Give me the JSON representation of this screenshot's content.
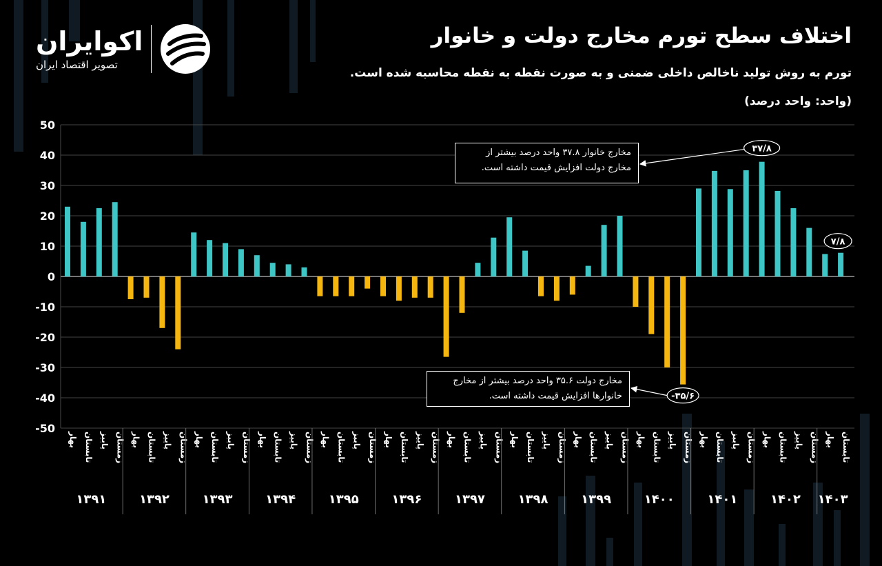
{
  "header": {
    "title": "اختلاف سطح تورم مخارج دولت و خانوار",
    "subtitle": "تورم به روش تولید ناخالص داخلی ضمنی و به صورت نقطه به نقطه محاسبه شده است.",
    "unit": "(واحد: واحد درصد)"
  },
  "logo": {
    "name": "اکوایران",
    "tagline": "تصویر اقتصاد ایران"
  },
  "annotations": {
    "household": "مخارج خانوار ۳۷.۸ واحد درصد بیشتر از مخارج دولت افزایش قیمت داشته است.",
    "government": "مخارج دولت ۳۵.۶ واحد درصد بیشتر از مخارج خانوارها افزایش قیمت داشته است."
  },
  "colors": {
    "positive": "#3ec6c6",
    "negative": "#f5b60f",
    "grid": "#5a5a5a",
    "text": "#ffffff",
    "background": "#000000"
  },
  "chart_data": {
    "type": "bar",
    "title": "اختلاف سطح تورم مخارج دولت و خانوار",
    "ylabel": "واحد درصد",
    "ylim": [
      -50,
      50
    ],
    "yticks": [
      {
        "value": 50,
        "label": "50"
      },
      {
        "value": 40,
        "label": "40"
      },
      {
        "value": 30,
        "label": "30"
      },
      {
        "value": 20,
        "label": "20"
      },
      {
        "value": 10,
        "label": "10"
      },
      {
        "value": 0,
        "label": "0"
      },
      {
        "value": -10,
        "label": "-10"
      },
      {
        "value": -20,
        "label": "-20"
      },
      {
        "value": -30,
        "label": "-30"
      },
      {
        "value": -40,
        "label": "-40"
      },
      {
        "value": -50,
        "label": "-50"
      }
    ],
    "seasons": [
      "بهار",
      "تابستان",
      "پاییز",
      "زمستان"
    ],
    "years": [
      "۱۳۹۱",
      "۱۳۹۲",
      "۱۳۹۳",
      "۱۳۹۴",
      "۱۳۹۵",
      "۱۳۹۶",
      "۱۳۹۷",
      "۱۳۹۸",
      "۱۳۹۹",
      "۱۴۰۰",
      "۱۴۰۱",
      "۱۴۰۲",
      "۱۴۰۳"
    ],
    "values": [
      23,
      18,
      22.5,
      24.5,
      -7.5,
      -7,
      -17,
      -24,
      14.5,
      12,
      11,
      9,
      7,
      4.5,
      4,
      3,
      -6.5,
      -6.5,
      -6.5,
      -4,
      -6.5,
      -8,
      -7,
      -7,
      -26.5,
      -12,
      4.5,
      12.8,
      19.5,
      8.5,
      -6.5,
      -8,
      -6,
      3.5,
      17,
      20,
      -10,
      -19,
      -30,
      -35.6,
      29,
      34.8,
      28.8,
      35,
      37.8,
      28.2,
      22.5,
      16,
      7.4,
      7.8
    ],
    "highlights": [
      {
        "index": 44,
        "label": "۳۷/۸"
      },
      {
        "index": 39,
        "label": "-۳۵/۶"
      },
      {
        "index": 49,
        "label": "۷/۸"
      }
    ]
  }
}
